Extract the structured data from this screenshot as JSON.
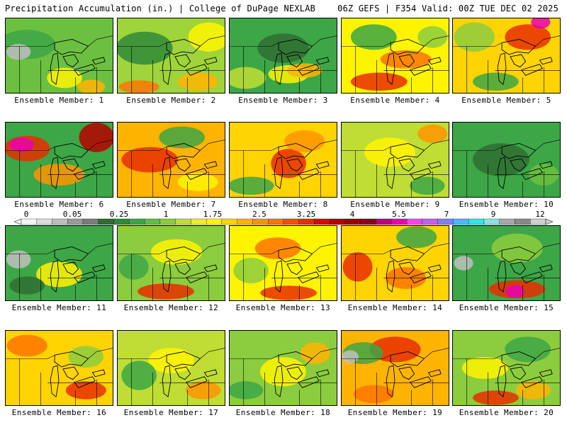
{
  "header": {
    "left": "Precipitation Accumulation (in.) | College of DuPage NEXLAB",
    "right": "06Z GEFS | F354 Valid: 00Z TUE DEC 02 2025"
  },
  "legend": {
    "ticks": [
      "0",
      "0.05",
      "0.25",
      "1",
      "1.75",
      "2.5",
      "3.25",
      "4",
      "5.5",
      "7",
      "9",
      "12"
    ],
    "colors": [
      "#f4f4f4",
      "#dcdcdc",
      "#bdbdbd",
      "#9a9a9a",
      "#7d7d7d",
      "#2f6d33",
      "#2f8a3a",
      "#3da647",
      "#5dbd49",
      "#8ccc3f",
      "#bfdd34",
      "#eeee2a",
      "#fff400",
      "#ffd400",
      "#ffb400",
      "#ff9400",
      "#ff7400",
      "#f55000",
      "#e82e00",
      "#d60b00",
      "#b70000",
      "#990000",
      "#8a001a",
      "#c0007a",
      "#ea00b4",
      "#ff40ff",
      "#c85cff",
      "#7f7fff",
      "#3fbfff",
      "#30e6e6",
      "#8ee0e0",
      "#a8a8a8",
      "#8a8a8a",
      "#cfcfcf"
    ]
  },
  "ensemble": {
    "label_prefix": "Ensemble Member:",
    "members": [
      {
        "num": "1",
        "base": "#6cc041",
        "blobs": [
          {
            "c": "#3da647",
            "s": [
              0.2,
              0.35,
              0.45,
              0.3
            ]
          },
          {
            "c": "#c0c0c0",
            "s": [
              0.12,
              0.45,
              0.15,
              0.12
            ]
          },
          {
            "c": "#fff400",
            "s": [
              0.55,
              0.8,
              0.25,
              0.18
            ]
          },
          {
            "c": "#ffb400",
            "s": [
              0.8,
              0.92,
              0.18,
              0.1
            ]
          }
        ]
      },
      {
        "num": "2",
        "base": "#9fd43a",
        "blobs": [
          {
            "c": "#2f8a3a",
            "s": [
              0.25,
              0.4,
              0.45,
              0.35
            ]
          },
          {
            "c": "#fff400",
            "s": [
              0.85,
              0.25,
              0.3,
              0.3
            ]
          },
          {
            "c": "#ffb400",
            "s": [
              0.75,
              0.85,
              0.3,
              0.15
            ]
          },
          {
            "c": "#ff7400",
            "s": [
              0.2,
              0.92,
              0.3,
              0.08
            ]
          }
        ]
      },
      {
        "num": "3",
        "base": "#3da647",
        "blobs": [
          {
            "c": "#2f6d33",
            "s": [
              0.5,
              0.4,
              0.4,
              0.3
            ]
          },
          {
            "c": "#bfdd34",
            "s": [
              0.15,
              0.8,
              0.3,
              0.2
            ]
          },
          {
            "c": "#fff400",
            "s": [
              0.55,
              0.75,
              0.3,
              0.15
            ]
          },
          {
            "c": "#ffb400",
            "s": [
              0.7,
              0.7,
              0.25,
              0.1
            ]
          }
        ]
      },
      {
        "num": "4",
        "base": "#fff400",
        "blobs": [
          {
            "c": "#3da647",
            "s": [
              0.3,
              0.25,
              0.35,
              0.25
            ]
          },
          {
            "c": "#ff7400",
            "s": [
              0.6,
              0.55,
              0.4,
              0.15
            ]
          },
          {
            "c": "#e82e00",
            "s": [
              0.35,
              0.85,
              0.45,
              0.15
            ]
          },
          {
            "c": "#8ccc3f",
            "s": [
              0.85,
              0.25,
              0.2,
              0.2
            ]
          }
        ]
      },
      {
        "num": "5",
        "base": "#ffd400",
        "blobs": [
          {
            "c": "#e82e00",
            "s": [
              0.7,
              0.25,
              0.35,
              0.25
            ]
          },
          {
            "c": "#ea00b4",
            "s": [
              0.82,
              0.05,
              0.1,
              0.08
            ]
          },
          {
            "c": "#8ccc3f",
            "s": [
              0.2,
              0.25,
              0.3,
              0.3
            ]
          },
          {
            "c": "#3da647",
            "s": [
              0.4,
              0.85,
              0.35,
              0.15
            ]
          }
        ]
      },
      {
        "num": "6",
        "base": "#3da647",
        "blobs": [
          {
            "c": "#e82e00",
            "s": [
              0.2,
              0.35,
              0.35,
              0.25
            ]
          },
          {
            "c": "#ea00b4",
            "s": [
              0.15,
              0.3,
              0.15,
              0.1
            ]
          },
          {
            "c": "#b70000",
            "s": [
              0.85,
              0.2,
              0.25,
              0.3
            ]
          },
          {
            "c": "#ff9400",
            "s": [
              0.5,
              0.7,
              0.4,
              0.2
            ]
          }
        ]
      },
      {
        "num": "7",
        "base": "#ffb400",
        "blobs": [
          {
            "c": "#e82e00",
            "s": [
              0.3,
              0.5,
              0.45,
              0.25
            ]
          },
          {
            "c": "#3da647",
            "s": [
              0.6,
              0.2,
              0.35,
              0.2
            ]
          },
          {
            "c": "#fff400",
            "s": [
              0.75,
              0.8,
              0.3,
              0.15
            ]
          }
        ]
      },
      {
        "num": "8",
        "base": "#ffd400",
        "blobs": [
          {
            "c": "#e82e00",
            "s": [
              0.55,
              0.55,
              0.25,
              0.3
            ]
          },
          {
            "c": "#3da647",
            "s": [
              0.2,
              0.85,
              0.35,
              0.15
            ]
          },
          {
            "c": "#ff9400",
            "s": [
              0.7,
              0.25,
              0.3,
              0.2
            ]
          }
        ]
      },
      {
        "num": "9",
        "base": "#bfdd34",
        "blobs": [
          {
            "c": "#fff400",
            "s": [
              0.45,
              0.4,
              0.4,
              0.3
            ]
          },
          {
            "c": "#3da647",
            "s": [
              0.8,
              0.85,
              0.25,
              0.15
            ]
          },
          {
            "c": "#ff9400",
            "s": [
              0.85,
              0.15,
              0.2,
              0.15
            ]
          }
        ]
      },
      {
        "num": "10",
        "base": "#3da647",
        "blobs": [
          {
            "c": "#2f6d33",
            "s": [
              0.45,
              0.5,
              0.45,
              0.35
            ]
          },
          {
            "c": "#6cc041",
            "s": [
              0.85,
              0.7,
              0.2,
              0.2
            ]
          }
        ]
      },
      {
        "num": "11",
        "base": "#3da647",
        "blobs": [
          {
            "c": "#c0c0c0",
            "s": [
              0.12,
              0.45,
              0.15,
              0.15
            ]
          },
          {
            "c": "#fff400",
            "s": [
              0.5,
              0.65,
              0.35,
              0.25
            ]
          },
          {
            "c": "#2f6d33",
            "s": [
              0.2,
              0.8,
              0.25,
              0.15
            ]
          }
        ]
      },
      {
        "num": "12",
        "base": "#8ccc3f",
        "blobs": [
          {
            "c": "#fff400",
            "s": [
              0.55,
              0.35,
              0.4,
              0.25
            ]
          },
          {
            "c": "#e82e00",
            "s": [
              0.45,
              0.88,
              0.45,
              0.12
            ]
          },
          {
            "c": "#3da647",
            "s": [
              0.15,
              0.55,
              0.2,
              0.25
            ]
          }
        ]
      },
      {
        "num": "13",
        "base": "#fff400",
        "blobs": [
          {
            "c": "#ff7400",
            "s": [
              0.45,
              0.3,
              0.35,
              0.2
            ]
          },
          {
            "c": "#e82e00",
            "s": [
              0.55,
              0.9,
              0.45,
              0.1
            ]
          },
          {
            "c": "#8ccc3f",
            "s": [
              0.2,
              0.6,
              0.25,
              0.25
            ]
          }
        ]
      },
      {
        "num": "14",
        "base": "#ffd400",
        "blobs": [
          {
            "c": "#e82e00",
            "s": [
              0.15,
              0.55,
              0.2,
              0.3
            ]
          },
          {
            "c": "#3da647",
            "s": [
              0.7,
              0.15,
              0.3,
              0.2
            ]
          },
          {
            "c": "#ff7400",
            "s": [
              0.6,
              0.7,
              0.3,
              0.2
            ]
          }
        ]
      },
      {
        "num": "15",
        "base": "#3da647",
        "blobs": [
          {
            "c": "#8ccc3f",
            "s": [
              0.6,
              0.3,
              0.4,
              0.3
            ]
          },
          {
            "c": "#e82e00",
            "s": [
              0.6,
              0.85,
              0.45,
              0.15
            ]
          },
          {
            "c": "#ea00b4",
            "s": [
              0.58,
              0.88,
              0.1,
              0.08
            ]
          },
          {
            "c": "#c0c0c0",
            "s": [
              0.1,
              0.5,
              0.1,
              0.1
            ]
          }
        ]
      },
      {
        "num": "16",
        "base": "#ffd400",
        "blobs": [
          {
            "c": "#ff7400",
            "s": [
              0.2,
              0.2,
              0.3,
              0.2
            ]
          },
          {
            "c": "#e82e00",
            "s": [
              0.75,
              0.8,
              0.3,
              0.15
            ]
          },
          {
            "c": "#8ccc3f",
            "s": [
              0.75,
              0.35,
              0.25,
              0.2
            ]
          }
        ]
      },
      {
        "num": "17",
        "base": "#bfdd34",
        "blobs": [
          {
            "c": "#fff400",
            "s": [
              0.5,
              0.4,
              0.35,
              0.25
            ]
          },
          {
            "c": "#3da647",
            "s": [
              0.2,
              0.6,
              0.25,
              0.3
            ]
          },
          {
            "c": "#ff9400",
            "s": [
              0.8,
              0.8,
              0.25,
              0.15
            ]
          }
        ]
      },
      {
        "num": "18",
        "base": "#8ccc3f",
        "blobs": [
          {
            "c": "#fff400",
            "s": [
              0.5,
              0.55,
              0.35,
              0.3
            ]
          },
          {
            "c": "#ffb400",
            "s": [
              0.8,
              0.3,
              0.2,
              0.2
            ]
          },
          {
            "c": "#3da647",
            "s": [
              0.15,
              0.8,
              0.25,
              0.15
            ]
          }
        ]
      },
      {
        "num": "19",
        "base": "#ffb400",
        "blobs": [
          {
            "c": "#e82e00",
            "s": [
              0.5,
              0.25,
              0.4,
              0.25
            ]
          },
          {
            "c": "#3da647",
            "s": [
              0.2,
              0.3,
              0.3,
              0.2
            ]
          },
          {
            "c": "#c0c0c0",
            "s": [
              0.08,
              0.35,
              0.08,
              0.08
            ]
          },
          {
            "c": "#ff7400",
            "s": [
              0.3,
              0.85,
              0.3,
              0.15
            ]
          }
        ]
      },
      {
        "num": "20",
        "base": "#8ccc3f",
        "blobs": [
          {
            "c": "#3da647",
            "s": [
              0.7,
              0.25,
              0.35,
              0.25
            ]
          },
          {
            "c": "#fff400",
            "s": [
              0.3,
              0.5,
              0.35,
              0.2
            ]
          },
          {
            "c": "#e82e00",
            "s": [
              0.4,
              0.9,
              0.35,
              0.1
            ]
          },
          {
            "c": "#ffb400",
            "s": [
              0.75,
              0.8,
              0.25,
              0.15
            ]
          }
        ]
      }
    ]
  }
}
